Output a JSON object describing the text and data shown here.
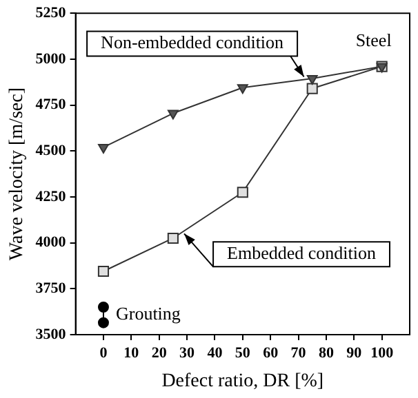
{
  "chart_data": {
    "type": "line",
    "xlabel": "Defect ratio, DR [%]",
    "ylabel": "Wave velocity [m/sec]",
    "xlim": [
      -10,
      110
    ],
    "xticks": [
      0,
      10,
      20,
      30,
      40,
      50,
      60,
      70,
      80,
      90,
      100
    ],
    "ylim": [
      3500,
      5250
    ],
    "yticks": [
      3500,
      3750,
      4000,
      4250,
      4500,
      4750,
      5000,
      5250
    ],
    "grid": false,
    "legend": false,
    "line_style": "solid",
    "series": [
      {
        "x": [
          0,
          25,
          50,
          75,
          100
        ],
        "values": [
          4520,
          4705,
          4845,
          4895,
          4960
        ],
        "color": "#333333",
        "marker": "triangle"
      },
      {
        "x": [
          0,
          25,
          50,
          75,
          100
        ],
        "values": [
          3845,
          4025,
          4275,
          4840,
          4960
        ],
        "color": "#333333",
        "marker": "square"
      },
      {
        "name": "Grouting",
        "x": [
          0,
          0
        ],
        "values": [
          3650,
          3565
        ],
        "color": "#000000",
        "marker": "circle"
      }
    ],
    "annotations": [
      {
        "text": "Non-embedded condition",
        "x": 72,
        "y": 4904
      },
      {
        "text": "Embedded condition",
        "x": 29,
        "y": 4050
      },
      {
        "text": "Steel",
        "x": 100,
        "y": 4960
      }
    ]
  }
}
